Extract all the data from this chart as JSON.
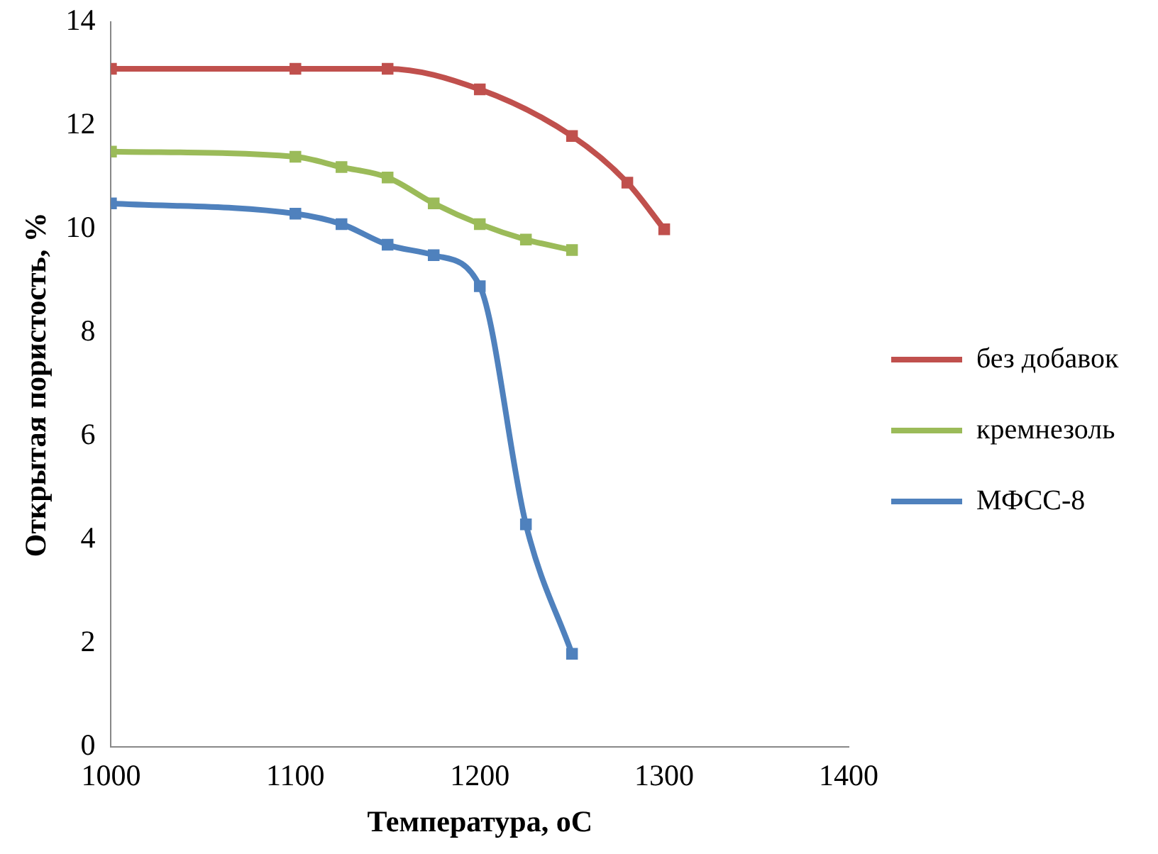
{
  "chart_data": {
    "type": "line",
    "xlabel": "Температура, оС",
    "ylabel": "Открытая пористость, %",
    "xlim": [
      1000,
      1400
    ],
    "xticks": [
      1000,
      1100,
      1200,
      1300,
      1400
    ],
    "ylim": [
      0,
      14
    ],
    "yticks": [
      0,
      2,
      4,
      6,
      8,
      10,
      12,
      14
    ],
    "grid": false,
    "legend": "right",
    "marker": "square",
    "line_style": "solid",
    "series": [
      {
        "name": "без добавок",
        "color": "#c0504d",
        "x": [
          1000,
          1100,
          1150,
          1200,
          1250,
          1280,
          1300
        ],
        "values": [
          13.1,
          13.1,
          13.1,
          12.7,
          11.8,
          10.9,
          10.0
        ]
      },
      {
        "name": "кремнезоль",
        "color": "#9bbb59",
        "x": [
          1000,
          1100,
          1125,
          1150,
          1175,
          1200,
          1225,
          1250
        ],
        "values": [
          11.5,
          11.4,
          11.2,
          11.0,
          10.5,
          10.1,
          9.8,
          9.6
        ]
      },
      {
        "name": "МФСС-8",
        "color": "#4f81bd",
        "x": [
          1000,
          1100,
          1125,
          1150,
          1175,
          1200,
          1225,
          1250
        ],
        "values": [
          10.5,
          10.3,
          10.1,
          9.7,
          9.5,
          8.9,
          4.3,
          1.8
        ]
      }
    ]
  }
}
